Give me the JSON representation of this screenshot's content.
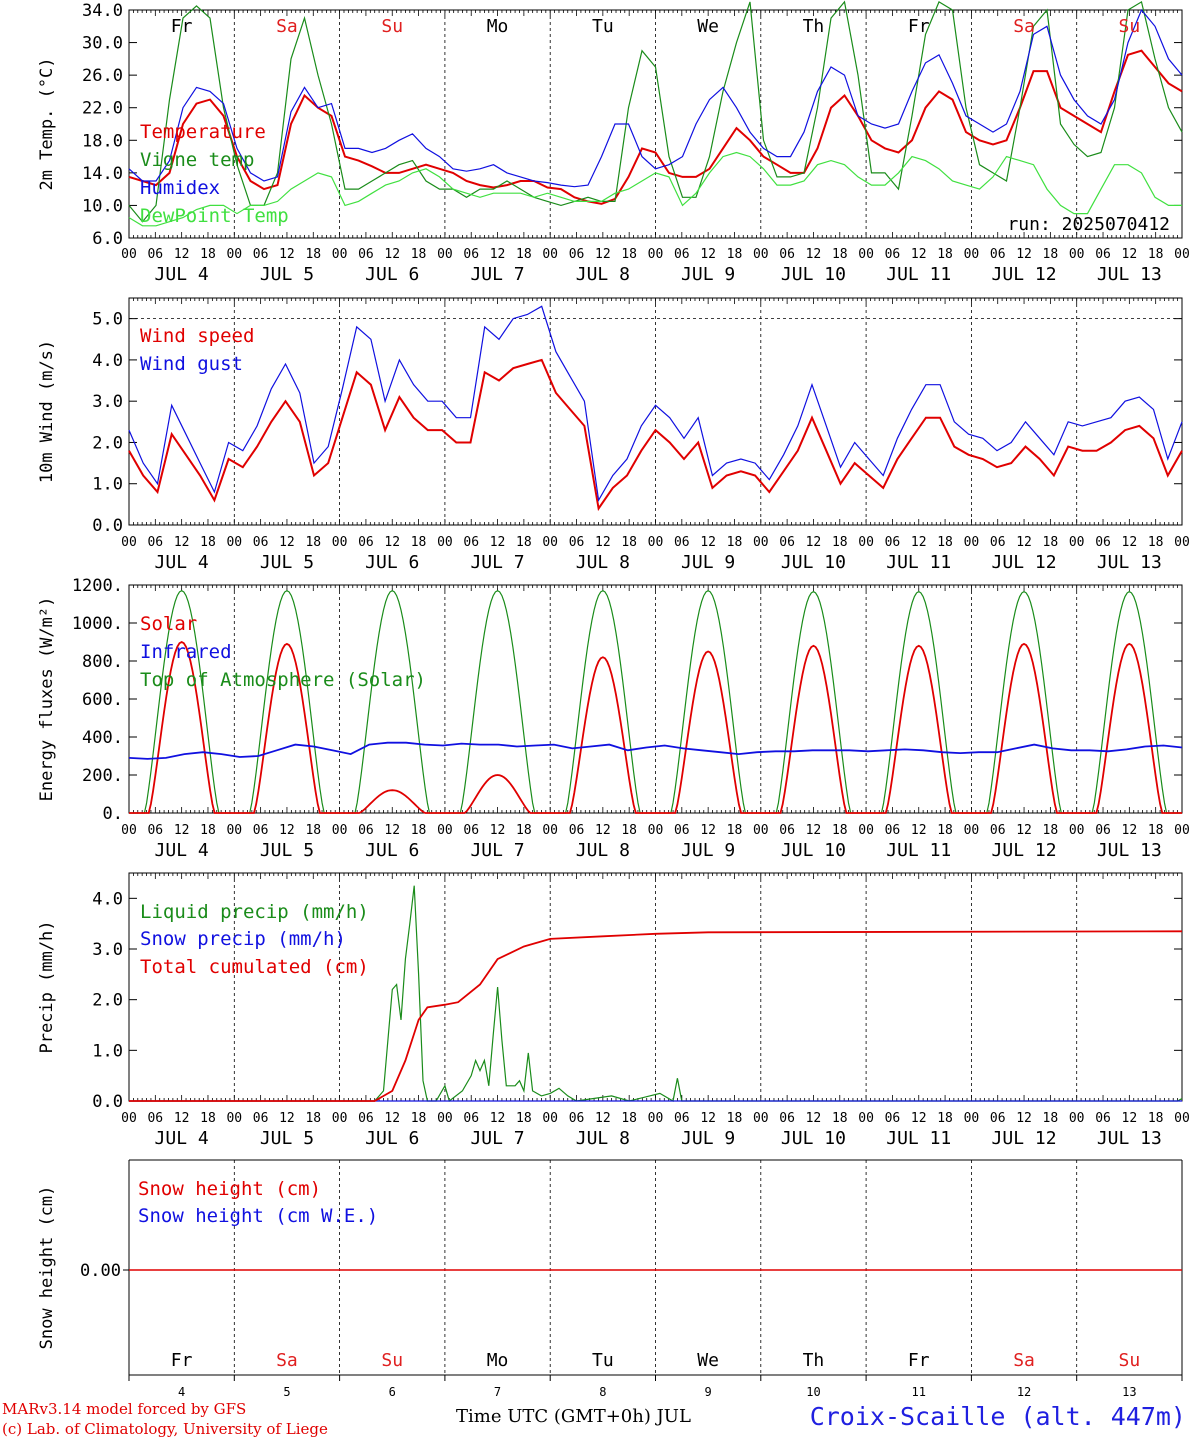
{
  "footer": {
    "model_line": "MARv3.14 model forced by GFS",
    "copyright_line": "(c) Lab. of Climatology, University of Liege",
    "xaxis_title": "Time UTC (GMT+0h) JUL",
    "station": "Croix-Scaille (alt. 447m)"
  },
  "colors": {
    "red": "#e00000",
    "green": "#1a8c1a",
    "blue": "#1010e0",
    "lightgreen": "#40e040",
    "black": "#000000",
    "weekend": "#e02020"
  },
  "chart_data": [
    {
      "type": "line",
      "ylabel": "2m Temp. (°C)",
      "ylim": [
        6,
        34
      ],
      "yticks": [
        "6.0",
        "10.0",
        "14.0",
        "18.0",
        "22.0",
        "26.0",
        "30.0",
        "34.0"
      ],
      "x_hours_step": 3,
      "run_label": "run: 2025070412",
      "day_labels": [
        {
          "label": "Fr",
          "weekend": false
        },
        {
          "label": "Sa",
          "weekend": true
        },
        {
          "label": "Su",
          "weekend": true
        },
        {
          "label": "Mo",
          "weekend": false
        },
        {
          "label": "Tu",
          "weekend": false
        },
        {
          "label": "We",
          "weekend": false
        },
        {
          "label": "Th",
          "weekend": false
        },
        {
          "label": "Fr",
          "weekend": false
        },
        {
          "label": "Sa",
          "weekend": true
        },
        {
          "label": "Su",
          "weekend": true
        }
      ],
      "series": [
        {
          "name": "Temperature",
          "color": "#e00000",
          "values": [
            13.5,
            13,
            12.5,
            14,
            20,
            22.5,
            23,
            21,
            16,
            13,
            12,
            12.5,
            20,
            23.5,
            22,
            21,
            16,
            15.5,
            14.8,
            14,
            14,
            14.5,
            15,
            14.5,
            14,
            13,
            12.5,
            12.2,
            12.5,
            13,
            13,
            12.2,
            12,
            11,
            10.5,
            10.2,
            10.8,
            13.5,
            17,
            16.5,
            14,
            13.5,
            13.5,
            14.5,
            17,
            19.5,
            18,
            16,
            15,
            14,
            14,
            17,
            22,
            23.5,
            21,
            18,
            17,
            16.5,
            18,
            22,
            24,
            23,
            19,
            18,
            17.5,
            18,
            22,
            26.5,
            26.5,
            22,
            21,
            20,
            19,
            24,
            28.5,
            29,
            27,
            25,
            24
          ]
        },
        {
          "name": "Vigne temp",
          "color": "#1a8c1a",
          "values": [
            10,
            8,
            10,
            23,
            33,
            34.5,
            33,
            22,
            15,
            10,
            10,
            14,
            28,
            33,
            26,
            20,
            12,
            12,
            13,
            14,
            15,
            15.5,
            13,
            12,
            12,
            11,
            12,
            12,
            13,
            12,
            11,
            10.5,
            10,
            10.5,
            11,
            10.5,
            10.5,
            22,
            29,
            27,
            16,
            11,
            11,
            16,
            24,
            30,
            35,
            18,
            13.5,
            13.5,
            14,
            22,
            33,
            35,
            26,
            14,
            14,
            12,
            21,
            31,
            35,
            34,
            22,
            15,
            14,
            13,
            22,
            32,
            34,
            20,
            17.5,
            16,
            16.5,
            22,
            34,
            35,
            28,
            22,
            19
          ]
        },
        {
          "name": "Humidex",
          "color": "#1010e0",
          "values": [
            14.5,
            13,
            13,
            15.5,
            22,
            24.5,
            24,
            22.5,
            17,
            14,
            13,
            13.5,
            21.5,
            24.5,
            22,
            22.5,
            17,
            17,
            16.5,
            17,
            18,
            18.8,
            17,
            16,
            14.5,
            14.2,
            14.5,
            15,
            14,
            13.5,
            13,
            12.8,
            12.5,
            12.3,
            12.5,
            16,
            20,
            20,
            16,
            14.5,
            15,
            16,
            20,
            23,
            24.5,
            22,
            19,
            17,
            16,
            16,
            19,
            24,
            27,
            26,
            21,
            20,
            19.5,
            20,
            24,
            27.5,
            28.5,
            25,
            21,
            20,
            19,
            20,
            24,
            31,
            32,
            26,
            23,
            21,
            20,
            23,
            30,
            34,
            32,
            28,
            26
          ]
        },
        {
          "name": "DewPoint Temp",
          "color": "#40e040",
          "values": [
            8.5,
            7.5,
            7.5,
            8,
            8.5,
            9.5,
            10,
            10,
            9,
            10,
            10,
            10.5,
            12,
            13,
            14,
            13.5,
            10,
            10.5,
            11.5,
            12.5,
            13,
            14,
            14.5,
            13.5,
            12,
            11.5,
            11,
            11.5,
            11.5,
            11.5,
            11,
            11.5,
            11,
            10.5,
            10.5,
            10.5,
            11.5,
            12,
            13,
            14,
            13.5,
            10,
            11.5,
            14,
            16,
            16.5,
            16,
            14.5,
            12.5,
            12.5,
            13,
            15,
            15.5,
            15,
            13.5,
            12.5,
            12.5,
            14,
            16,
            15.5,
            14.5,
            13,
            12.5,
            12,
            13.5,
            16,
            15.5,
            15,
            12,
            10,
            9,
            9,
            12,
            15,
            15,
            14,
            11,
            10,
            10
          ]
        }
      ]
    },
    {
      "type": "line",
      "ylabel": "10m Wind (m/s)",
      "ylim": [
        0,
        5.5
      ],
      "yticks": [
        "0.0",
        "1.0",
        "2.0",
        "3.0",
        "4.0",
        "5.0"
      ],
      "x_hours_step": 3,
      "reference_line": 5,
      "day_labels_below": [
        "JUL  4",
        "JUL  5",
        "JUL  6",
        "JUL  7",
        "JUL  8",
        "JUL  9",
        "JUL 10",
        "JUL 11",
        "JUL 12",
        "JUL 13"
      ],
      "series": [
        {
          "name": "Wind speed",
          "color": "#e00000",
          "values": [
            1.8,
            1.2,
            0.8,
            2.2,
            1.7,
            1.2,
            0.6,
            1.6,
            1.4,
            1.9,
            2.5,
            3,
            2.5,
            1.2,
            1.5,
            2.6,
            3.7,
            3.4,
            2.3,
            3.1,
            2.6,
            2.3,
            2.3,
            2.0,
            2.0,
            3.7,
            3.5,
            3.8,
            3.9,
            4.0,
            3.2,
            2.8,
            2.4,
            0.4,
            0.9,
            1.2,
            1.8,
            2.3,
            2.0,
            1.6,
            2.0,
            0.9,
            1.2,
            1.3,
            1.2,
            0.8,
            1.3,
            1.8,
            2.6,
            1.8,
            1.0,
            1.5,
            1.2,
            0.9,
            1.6,
            2.1,
            2.6,
            2.6,
            1.9,
            1.7,
            1.6,
            1.4,
            1.5,
            1.9,
            1.6,
            1.2,
            1.9,
            1.8,
            1.8,
            2.0,
            2.3,
            2.4,
            2.1,
            1.2,
            1.8
          ]
        },
        {
          "name": "Wind gust",
          "color": "#1010e0",
          "values": [
            2.3,
            1.5,
            1.0,
            2.9,
            2.2,
            1.5,
            0.8,
            2.0,
            1.8,
            2.4,
            3.3,
            3.9,
            3.2,
            1.5,
            1.9,
            3.3,
            4.8,
            4.5,
            3.0,
            4.0,
            3.4,
            3.0,
            3.0,
            2.6,
            2.6,
            4.8,
            4.5,
            5.0,
            5.1,
            5.3,
            4.2,
            3.6,
            3.0,
            0.6,
            1.2,
            1.6,
            2.4,
            2.9,
            2.6,
            2.1,
            2.6,
            1.2,
            1.5,
            1.6,
            1.5,
            1.1,
            1.7,
            2.4,
            3.4,
            2.4,
            1.4,
            2.0,
            1.6,
            1.2,
            2.1,
            2.8,
            3.4,
            3.4,
            2.5,
            2.2,
            2.1,
            1.8,
            2.0,
            2.5,
            2.1,
            1.7,
            2.5,
            2.4,
            2.5,
            2.6,
            3.0,
            3.1,
            2.8,
            1.6,
            2.5
          ]
        }
      ]
    },
    {
      "type": "line",
      "ylabel": "Energy fluxes (W/m²)",
      "ylim": [
        0,
        1200
      ],
      "yticks": [
        "0.",
        "200.",
        "400.",
        "600.",
        "800.",
        "1000.",
        "1200."
      ],
      "x_hours_step": 3,
      "day_labels_below": [
        "JUL  4",
        "JUL  5",
        "JUL  6",
        "JUL  7",
        "JUL  8",
        "JUL  9",
        "JUL 10",
        "JUL 11",
        "JUL 12",
        "JUL 13"
      ],
      "series": [
        {
          "name": "Solar",
          "color": "#e00000",
          "daily_peak": [
            900,
            890,
            120,
            200,
            820,
            850,
            880,
            880,
            890,
            890
          ]
        },
        {
          "name": "Infrared",
          "color": "#1010e0",
          "values": [
            290,
            285,
            290,
            310,
            320,
            310,
            295,
            300,
            330,
            360,
            350,
            330,
            310,
            360,
            370,
            370,
            360,
            355,
            365,
            360,
            360,
            350,
            355,
            360,
            340,
            350,
            360,
            330,
            345,
            355,
            340,
            330,
            320,
            310,
            320,
            325,
            325,
            330,
            330,
            330,
            325,
            330,
            335,
            330,
            320,
            315,
            320,
            320,
            340,
            360,
            340,
            330,
            330,
            325,
            335,
            350,
            355,
            345
          ]
        },
        {
          "name": "Top of Atmosphere (Solar)",
          "color": "#1a8c1a",
          "daily_peak": [
            1170,
            1170,
            1170,
            1170,
            1170,
            1170,
            1165,
            1165,
            1165,
            1165
          ]
        }
      ]
    },
    {
      "type": "line",
      "ylabel": "Precip (mm/h)",
      "ylim": [
        0,
        4.5
      ],
      "yticks": [
        "0.0",
        "1.0",
        "2.0",
        "3.0",
        "4.0"
      ],
      "x_hours_step": 3,
      "day_labels_below": [
        "JUL  4",
        "JUL  5",
        "JUL  6",
        "JUL  7",
        "JUL  8",
        "JUL  9",
        "JUL 10",
        "JUL 11",
        "JUL 12",
        "JUL 13"
      ],
      "series": [
        {
          "name": "Liquid precip (mm/h)",
          "color": "#1a8c1a",
          "points": [
            [
              0,
              0
            ],
            [
              56,
              0
            ],
            [
              58,
              0.2
            ],
            [
              60,
              2.2
            ],
            [
              61,
              2.3
            ],
            [
              62,
              1.6
            ],
            [
              63,
              2.8
            ],
            [
              64,
              3.5
            ],
            [
              65,
              4.25
            ],
            [
              66,
              2.5
            ],
            [
              67,
              0.4
            ],
            [
              68,
              0
            ],
            [
              70,
              0
            ],
            [
              72,
              0.3
            ],
            [
              73,
              0
            ],
            [
              76,
              0.2
            ],
            [
              78,
              0.5
            ],
            [
              79,
              0.8
            ],
            [
              80,
              0.6
            ],
            [
              81,
              0.8
            ],
            [
              82,
              0.3
            ],
            [
              83,
              1.3
            ],
            [
              84,
              2.25
            ],
            [
              85,
              1.2
            ],
            [
              86,
              0.3
            ],
            [
              88,
              0.3
            ],
            [
              89,
              0.4
            ],
            [
              90,
              0.2
            ],
            [
              91,
              0.95
            ],
            [
              92,
              0.2
            ],
            [
              94,
              0.1
            ],
            [
              96,
              0.15
            ],
            [
              98,
              0.25
            ],
            [
              100,
              0.1
            ],
            [
              102,
              0
            ],
            [
              110,
              0.1
            ],
            [
              114,
              0
            ],
            [
              121,
              0.15
            ],
            [
              124,
              0
            ],
            [
              125,
              0.45
            ],
            [
              126,
              0
            ],
            [
              239,
              0
            ],
            [
              240,
              0.05
            ]
          ]
        },
        {
          "name": "Snow precip (mm/h)",
          "color": "#1010e0",
          "points": [
            [
              0,
              0
            ],
            [
              240,
              0
            ]
          ]
        },
        {
          "name": "Total cumulated (cm)",
          "color": "#e00000",
          "points": [
            [
              0,
              0
            ],
            [
              56,
              0
            ],
            [
              60,
              0.2
            ],
            [
              63,
              0.8
            ],
            [
              66,
              1.6
            ],
            [
              68,
              1.85
            ],
            [
              72,
              1.9
            ],
            [
              75,
              1.95
            ],
            [
              80,
              2.3
            ],
            [
              84,
              2.8
            ],
            [
              90,
              3.05
            ],
            [
              96,
              3.2
            ],
            [
              108,
              3.25
            ],
            [
              120,
              3.3
            ],
            [
              132,
              3.33
            ],
            [
              240,
              3.35
            ]
          ]
        }
      ]
    },
    {
      "type": "line",
      "ylabel": "Snow height (cm)",
      "yticks": [
        "0.00"
      ],
      "series": [
        {
          "name": "Snow height (cm)",
          "color": "#e00000",
          "points": [
            [
              0,
              0
            ],
            [
              240,
              0
            ]
          ]
        },
        {
          "name": "Snow height (cm W.E.)",
          "color": "#1010e0",
          "points": []
        }
      ],
      "day_labels": [
        {
          "label": "Fr",
          "weekend": false
        },
        {
          "label": "Sa",
          "weekend": true
        },
        {
          "label": "Su",
          "weekend": true
        },
        {
          "label": "Mo",
          "weekend": false
        },
        {
          "label": "Tu",
          "weekend": false
        },
        {
          "label": "We",
          "weekend": false
        },
        {
          "label": "Th",
          "weekend": false
        },
        {
          "label": "Fr",
          "weekend": false
        },
        {
          "label": "Sa",
          "weekend": true
        },
        {
          "label": "Su",
          "weekend": true
        }
      ],
      "day_numbers": [
        "4",
        "5",
        "6",
        "7",
        "8",
        "9",
        "10",
        "11",
        "12",
        "13"
      ]
    }
  ]
}
